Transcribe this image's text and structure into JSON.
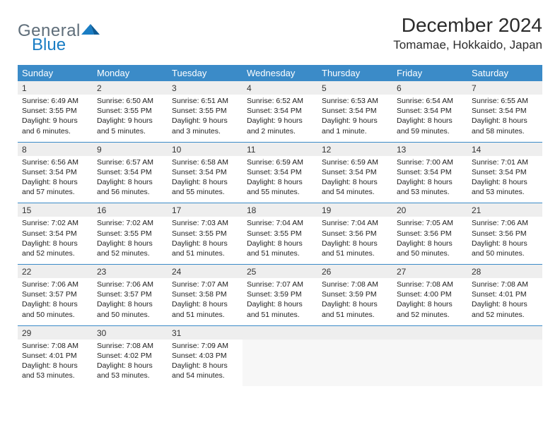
{
  "brand": {
    "text_general": "General",
    "text_blue": "Blue",
    "logo_color": "#1a7dc4",
    "logo_grey": "#5f6e7a"
  },
  "title": "December 2024",
  "location": "Tomamae, Hokkaido, Japan",
  "colors": {
    "header_bg": "#3b8bc8",
    "header_text": "#ffffff",
    "daynum_bg": "#eeeeee",
    "rule": "#3b8bc8"
  },
  "day_headers": [
    "Sunday",
    "Monday",
    "Tuesday",
    "Wednesday",
    "Thursday",
    "Friday",
    "Saturday"
  ],
  "weeks": [
    [
      {
        "n": "1",
        "sunrise": "6:49 AM",
        "sunset": "3:55 PM",
        "daylight": "9 hours and 6 minutes."
      },
      {
        "n": "2",
        "sunrise": "6:50 AM",
        "sunset": "3:55 PM",
        "daylight": "9 hours and 5 minutes."
      },
      {
        "n": "3",
        "sunrise": "6:51 AM",
        "sunset": "3:55 PM",
        "daylight": "9 hours and 3 minutes."
      },
      {
        "n": "4",
        "sunrise": "6:52 AM",
        "sunset": "3:54 PM",
        "daylight": "9 hours and 2 minutes."
      },
      {
        "n": "5",
        "sunrise": "6:53 AM",
        "sunset": "3:54 PM",
        "daylight": "9 hours and 1 minute."
      },
      {
        "n": "6",
        "sunrise": "6:54 AM",
        "sunset": "3:54 PM",
        "daylight": "8 hours and 59 minutes."
      },
      {
        "n": "7",
        "sunrise": "6:55 AM",
        "sunset": "3:54 PM",
        "daylight": "8 hours and 58 minutes."
      }
    ],
    [
      {
        "n": "8",
        "sunrise": "6:56 AM",
        "sunset": "3:54 PM",
        "daylight": "8 hours and 57 minutes."
      },
      {
        "n": "9",
        "sunrise": "6:57 AM",
        "sunset": "3:54 PM",
        "daylight": "8 hours and 56 minutes."
      },
      {
        "n": "10",
        "sunrise": "6:58 AM",
        "sunset": "3:54 PM",
        "daylight": "8 hours and 55 minutes."
      },
      {
        "n": "11",
        "sunrise": "6:59 AM",
        "sunset": "3:54 PM",
        "daylight": "8 hours and 55 minutes."
      },
      {
        "n": "12",
        "sunrise": "6:59 AM",
        "sunset": "3:54 PM",
        "daylight": "8 hours and 54 minutes."
      },
      {
        "n": "13",
        "sunrise": "7:00 AM",
        "sunset": "3:54 PM",
        "daylight": "8 hours and 53 minutes."
      },
      {
        "n": "14",
        "sunrise": "7:01 AM",
        "sunset": "3:54 PM",
        "daylight": "8 hours and 53 minutes."
      }
    ],
    [
      {
        "n": "15",
        "sunrise": "7:02 AM",
        "sunset": "3:54 PM",
        "daylight": "8 hours and 52 minutes."
      },
      {
        "n": "16",
        "sunrise": "7:02 AM",
        "sunset": "3:55 PM",
        "daylight": "8 hours and 52 minutes."
      },
      {
        "n": "17",
        "sunrise": "7:03 AM",
        "sunset": "3:55 PM",
        "daylight": "8 hours and 51 minutes."
      },
      {
        "n": "18",
        "sunrise": "7:04 AM",
        "sunset": "3:55 PM",
        "daylight": "8 hours and 51 minutes."
      },
      {
        "n": "19",
        "sunrise": "7:04 AM",
        "sunset": "3:56 PM",
        "daylight": "8 hours and 51 minutes."
      },
      {
        "n": "20",
        "sunrise": "7:05 AM",
        "sunset": "3:56 PM",
        "daylight": "8 hours and 50 minutes."
      },
      {
        "n": "21",
        "sunrise": "7:06 AM",
        "sunset": "3:56 PM",
        "daylight": "8 hours and 50 minutes."
      }
    ],
    [
      {
        "n": "22",
        "sunrise": "7:06 AM",
        "sunset": "3:57 PM",
        "daylight": "8 hours and 50 minutes."
      },
      {
        "n": "23",
        "sunrise": "7:06 AM",
        "sunset": "3:57 PM",
        "daylight": "8 hours and 50 minutes."
      },
      {
        "n": "24",
        "sunrise": "7:07 AM",
        "sunset": "3:58 PM",
        "daylight": "8 hours and 51 minutes."
      },
      {
        "n": "25",
        "sunrise": "7:07 AM",
        "sunset": "3:59 PM",
        "daylight": "8 hours and 51 minutes."
      },
      {
        "n": "26",
        "sunrise": "7:08 AM",
        "sunset": "3:59 PM",
        "daylight": "8 hours and 51 minutes."
      },
      {
        "n": "27",
        "sunrise": "7:08 AM",
        "sunset": "4:00 PM",
        "daylight": "8 hours and 52 minutes."
      },
      {
        "n": "28",
        "sunrise": "7:08 AM",
        "sunset": "4:01 PM",
        "daylight": "8 hours and 52 minutes."
      }
    ],
    [
      {
        "n": "29",
        "sunrise": "7:08 AM",
        "sunset": "4:01 PM",
        "daylight": "8 hours and 53 minutes."
      },
      {
        "n": "30",
        "sunrise": "7:08 AM",
        "sunset": "4:02 PM",
        "daylight": "8 hours and 53 minutes."
      },
      {
        "n": "31",
        "sunrise": "7:09 AM",
        "sunset": "4:03 PM",
        "daylight": "8 hours and 54 minutes."
      },
      null,
      null,
      null,
      null
    ]
  ],
  "labels": {
    "sunrise": "Sunrise:",
    "sunset": "Sunset:",
    "daylight": "Daylight:"
  }
}
